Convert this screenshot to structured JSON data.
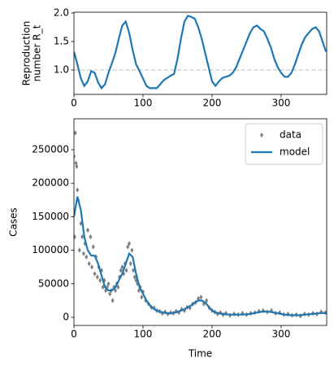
{
  "chart_data": [
    {
      "type": "line",
      "ylabel": [
        "Reproduction",
        "number R_t"
      ],
      "x": [
        0,
        5,
        10,
        15,
        20,
        25,
        30,
        35,
        40,
        45,
        50,
        55,
        60,
        65,
        70,
        75,
        80,
        85,
        90,
        95,
        100,
        105,
        110,
        115,
        120,
        125,
        130,
        135,
        140,
        145,
        150,
        155,
        160,
        165,
        170,
        175,
        180,
        185,
        190,
        195,
        200,
        205,
        210,
        215,
        220,
        225,
        230,
        235,
        240,
        245,
        250,
        255,
        260,
        265,
        270,
        275,
        280,
        285,
        290,
        295,
        300,
        305,
        310,
        315,
        320,
        325,
        330,
        335,
        340,
        345,
        350,
        355,
        360,
        365
      ],
      "values": [
        1.32,
        1.1,
        0.85,
        0.72,
        0.8,
        0.98,
        0.95,
        0.78,
        0.68,
        0.75,
        0.95,
        1.12,
        1.3,
        1.55,
        1.78,
        1.85,
        1.65,
        1.35,
        1.1,
        0.98,
        0.85,
        0.72,
        0.68,
        0.68,
        0.68,
        0.75,
        0.82,
        0.86,
        0.9,
        0.93,
        1.2,
        1.55,
        1.85,
        1.95,
        1.93,
        1.9,
        1.75,
        1.55,
        1.3,
        1.05,
        0.8,
        0.72,
        0.8,
        0.86,
        0.88,
        0.9,
        0.95,
        1.05,
        1.2,
        1.35,
        1.5,
        1.65,
        1.75,
        1.78,
        1.72,
        1.68,
        1.55,
        1.4,
        1.2,
        1.05,
        0.95,
        0.88,
        0.88,
        0.95,
        1.1,
        1.28,
        1.45,
        1.58,
        1.65,
        1.72,
        1.75,
        1.68,
        1.5,
        1.32
      ],
      "color": "#1f77b4",
      "hline": 1,
      "hline_color": "#d3d3d3",
      "xlim": [
        0,
        366
      ],
      "xticks": [
        0,
        100,
        200,
        300
      ],
      "ylim": [
        0.571,
        2.014
      ],
      "yticks": [
        {
          "value": 1,
          "label": "1.0"
        },
        {
          "value": 1.5,
          "label": "1.5"
        },
        {
          "value": 2,
          "label": "2.0"
        }
      ]
    },
    {
      "type": "combo",
      "xlabel": "Time",
      "ylabel": "Cases",
      "legend": "upper right",
      "series": [
        {
          "name": "data",
          "type": "scatter",
          "marker": "diamond",
          "color": "#808080",
          "x": [
            0,
            1,
            2,
            3,
            4,
            5,
            6,
            8,
            10,
            12,
            14,
            16,
            18,
            20,
            22,
            24,
            26,
            28,
            30,
            32,
            34,
            36,
            38,
            40,
            42,
            44,
            46,
            48,
            50,
            52,
            54,
            56,
            58,
            60,
            62,
            64,
            66,
            68,
            70,
            72,
            74,
            76,
            78,
            80,
            82,
            84,
            86,
            88,
            90,
            92,
            94,
            96,
            98,
            100,
            104,
            108,
            112,
            116,
            120,
            124,
            128,
            132,
            136,
            140,
            144,
            148,
            152,
            156,
            160,
            164,
            168,
            172,
            176,
            180,
            184,
            188,
            192,
            196,
            200,
            204,
            208,
            212,
            216,
            220,
            226,
            232,
            238,
            244,
            250,
            256,
            262,
            268,
            274,
            280,
            286,
            292,
            298,
            304,
            310,
            316,
            322,
            328,
            334,
            340,
            346,
            352,
            358,
            364
          ],
          "values": [
            240000,
            120000,
            275000,
            230000,
            225000,
            190000,
            175000,
            100000,
            140000,
            120000,
            95000,
            110000,
            90000,
            130000,
            80000,
            120000,
            75000,
            105000,
            65000,
            90000,
            60000,
            75000,
            55000,
            70000,
            45000,
            55000,
            40000,
            45000,
            50000,
            35000,
            40000,
            25000,
            45000,
            40000,
            50000,
            45000,
            60000,
            70000,
            75000,
            65000,
            80000,
            70000,
            105000,
            110000,
            80000,
            100000,
            70000,
            60000,
            55000,
            50000,
            40000,
            45000,
            30000,
            38000,
            25000,
            20000,
            15000,
            14000,
            10000,
            9000,
            6000,
            8000,
            5000,
            7000,
            6000,
            9000,
            7000,
            12000,
            10000,
            15000,
            14000,
            20000,
            22000,
            28000,
            30000,
            20000,
            25000,
            14000,
            10000,
            8000,
            5000,
            7000,
            4000,
            6000,
            3000,
            5000,
            4000,
            6000,
            4000,
            6000,
            7000,
            9000,
            10000,
            8000,
            10000,
            6000,
            7000,
            4000,
            5000,
            3000,
            4000,
            2000,
            5000,
            4000,
            6000,
            5000,
            8000,
            7000
          ]
        },
        {
          "name": "model",
          "type": "line",
          "color": "#1f77b4",
          "x": [
            0,
            5,
            10,
            15,
            20,
            25,
            30,
            35,
            40,
            45,
            50,
            55,
            60,
            65,
            70,
            75,
            80,
            85,
            90,
            95,
            100,
            105,
            110,
            115,
            120,
            125,
            130,
            135,
            140,
            145,
            150,
            155,
            160,
            165,
            170,
            175,
            180,
            185,
            190,
            195,
            200,
            205,
            210,
            215,
            220,
            225,
            230,
            235,
            240,
            245,
            250,
            255,
            260,
            265,
            270,
            275,
            280,
            285,
            290,
            295,
            300,
            305,
            310,
            315,
            320,
            325,
            330,
            335,
            340,
            345,
            350,
            355,
            360,
            365
          ],
          "values": [
            150000,
            180000,
            160000,
            120000,
            100000,
            92000,
            92000,
            80000,
            62000,
            45000,
            40000,
            40000,
            45000,
            55000,
            65000,
            80000,
            95000,
            90000,
            65000,
            45000,
            35000,
            25000,
            18000,
            13000,
            10000,
            8000,
            7000,
            6000,
            6000,
            7000,
            8000,
            10000,
            12000,
            15000,
            18000,
            22000,
            25000,
            25000,
            22000,
            16000,
            10000,
            7000,
            6000,
            5000,
            4500,
            4000,
            4000,
            4000,
            4000,
            4000,
            4500,
            5000,
            6000,
            7000,
            8000,
            8500,
            8500,
            8000,
            7000,
            6000,
            5000,
            4000,
            3500,
            3000,
            3000,
            3000,
            3500,
            4000,
            4500,
            5000,
            5500,
            6000,
            6500,
            6000
          ]
        }
      ],
      "xlim": [
        0,
        366
      ],
      "xticks": [
        0,
        100,
        200,
        300
      ],
      "ylim": [
        -12136,
        296116
      ],
      "yticks": [
        0,
        50000,
        100000,
        150000,
        200000,
        250000
      ]
    }
  ]
}
